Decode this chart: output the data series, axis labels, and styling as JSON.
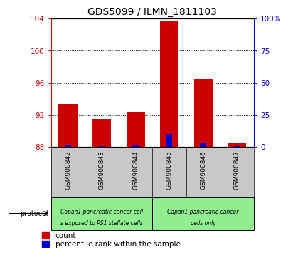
{
  "title": "GDS5099 / ILMN_1811103",
  "samples": [
    "GSM900842",
    "GSM900843",
    "GSM900844",
    "GSM900845",
    "GSM900846",
    "GSM900847"
  ],
  "count_values": [
    93.3,
    91.5,
    92.3,
    103.8,
    96.5,
    88.5
  ],
  "percentile_values": [
    1.5,
    1.0,
    1.5,
    10.0,
    2.5,
    1.0
  ],
  "ylim_left": [
    88,
    104
  ],
  "ylim_right": [
    0,
    100
  ],
  "yticks_left": [
    88,
    92,
    96,
    100,
    104
  ],
  "yticks_right": [
    0,
    25,
    50,
    75,
    100
  ],
  "ytick_labels_right": [
    "0",
    "25",
    "50",
    "75",
    "100%"
  ],
  "bar_color_red": "#cc0000",
  "bar_color_blue": "#0000cc",
  "left_axis_color": "#cc0000",
  "right_axis_color": "#0000cc",
  "legend_count_label": "count",
  "legend_percentile_label": "percentile rank within the sample",
  "protocol_label": "protocol",
  "protocol_box_color": "#90ee90",
  "protocol_box_gray": "#c8c8c8",
  "title_fontsize": 10,
  "tick_fontsize": 7.5,
  "sample_fontsize": 6.5,
  "proto_fontsize": 5.5,
  "legend_fontsize": 7.5,
  "group0_label_line1": "Capan1 pancreatic cancer cell",
  "group0_label_line2": "s exposed to PS1 stellate cells",
  "group1_label_line1": "Capan1 pancreatic cancer",
  "group1_label_line2": "cells only"
}
